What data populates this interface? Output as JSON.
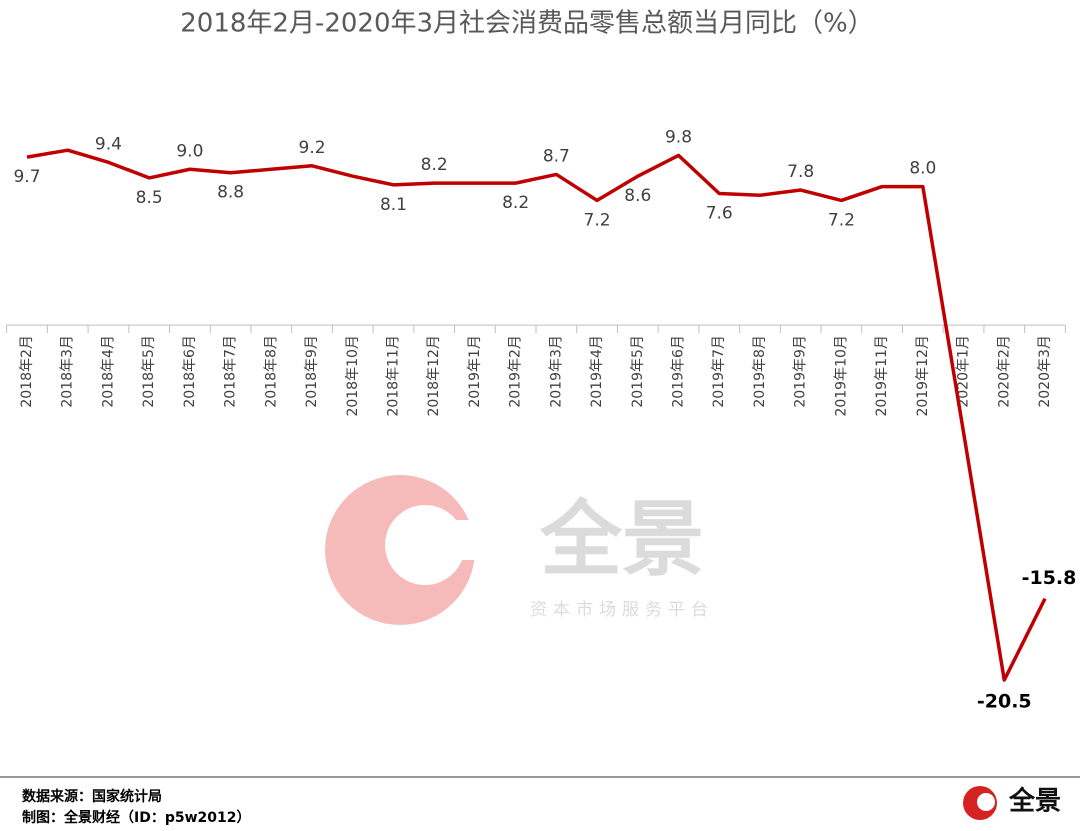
{
  "chart_data": {
    "type": "line",
    "title": "2018年2月-2020年3月社会消费品零售总额当月同比（%）",
    "categories": [
      "2018年2月",
      "2018年3月",
      "2018年4月",
      "2018年5月",
      "2018年6月",
      "2018年7月",
      "2018年8月",
      "2018年9月",
      "2018年10月",
      "2018年11月",
      "2018年12月",
      "2019年1月",
      "2019年2月",
      "2019年3月",
      "2019年4月",
      "2019年5月",
      "2019年6月",
      "2019年7月",
      "2019年8月",
      "2019年9月",
      "2019年10月",
      "2019年11月",
      "2019年12月",
      "2020年1月",
      "2020年2月",
      "2020年3月"
    ],
    "values": [
      9.7,
      10.1,
      9.4,
      8.5,
      9.0,
      8.8,
      9.0,
      9.2,
      8.6,
      8.1,
      8.2,
      8.2,
      8.2,
      8.7,
      7.2,
      8.6,
      9.8,
      7.6,
      7.5,
      7.8,
      7.2,
      8.0,
      8.0,
      -6.2,
      -20.5,
      -15.8
    ],
    "value_labels": [
      "9.7",
      null,
      "9.4",
      "8.5",
      "9.0",
      "8.8",
      null,
      "9.2",
      null,
      "8.1",
      "8.2",
      null,
      "8.2",
      "8.7",
      "7.2",
      "8.6",
      "9.8",
      "7.6",
      null,
      "7.8",
      "7.2",
      null,
      "8.0",
      null,
      "-20.5",
      "-15.8"
    ],
    "color": "#c00000",
    "ylim": [
      -22,
      13
    ]
  },
  "watermark": {
    "name": "全景",
    "tagline": "资本市场服务平台"
  },
  "footer": {
    "source": "数据来源：国家统计局",
    "credit": "制图：全景财经（ID：p5w2012）",
    "logo": "全景"
  }
}
